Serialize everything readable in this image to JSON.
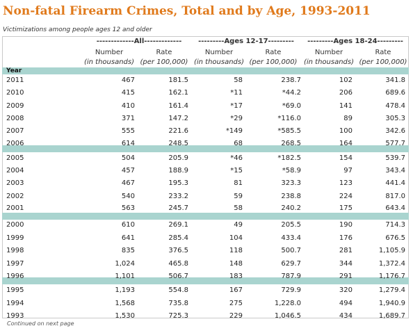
{
  "title": "Non-fatal Firearm Crimes, Total and by Age, 1993-2011",
  "subtitle": "Victimizations among people ages 12 and older",
  "groups": [
    {
      "label": "-------------All-------------"
    },
    {
      "label": "---------Ages 12-17---------"
    },
    {
      "label": "---------Ages 18-24---------"
    }
  ],
  "columns": [
    {
      "line1": "Number",
      "line2": "(in thousands)"
    },
    {
      "line1": "Rate",
      "line2": "(per 100,000)"
    },
    {
      "line1": "Number",
      "line2": "(in thousands)"
    },
    {
      "line1": "Rate",
      "line2": "(per 100,000)"
    },
    {
      "line1": "Number",
      "line2": "(in thousands)"
    },
    {
      "line1": "Rate",
      "line2": "(per 100,000)"
    }
  ],
  "year_label": "Year",
  "rows": [
    {
      "year": "2011",
      "v": [
        "467",
        "181.5",
        "58",
        "238.7",
        "102",
        "341.8"
      ]
    },
    {
      "year": "2010",
      "v": [
        "415",
        "162.1",
        "*11",
        "*44.2",
        "206",
        "689.6"
      ]
    },
    {
      "year": "2009",
      "v": [
        "410",
        "161.4",
        "*17",
        "*69.0",
        "141",
        "478.4"
      ]
    },
    {
      "year": "2008",
      "v": [
        "371",
        "147.2",
        "*29",
        "*116.0",
        "89",
        "305.3"
      ]
    },
    {
      "year": "2007",
      "v": [
        "555",
        "221.6",
        "*149",
        "*585.5",
        "100",
        "342.6"
      ]
    },
    {
      "year": "2006",
      "v": [
        "614",
        "248.5",
        "68",
        "268.5",
        "164",
        "577.7"
      ]
    },
    {
      "year": "2005",
      "v": [
        "504",
        "205.9",
        "*46",
        "*182.5",
        "154",
        "539.7"
      ]
    },
    {
      "year": "2004",
      "v": [
        "457",
        "188.9",
        "*15",
        "*58.9",
        "97",
        "343.4"
      ]
    },
    {
      "year": "2003",
      "v": [
        "467",
        "195.3",
        "81",
        "323.3",
        "123",
        "441.4"
      ]
    },
    {
      "year": "2002",
      "v": [
        "540",
        "233.2",
        "59",
        "238.8",
        "224",
        "817.0"
      ]
    },
    {
      "year": "2001",
      "v": [
        "563",
        "245.7",
        "58",
        "240.2",
        "175",
        "643.4"
      ]
    },
    {
      "year": "2000",
      "v": [
        "610",
        "269.1",
        "49",
        "205.5",
        "190",
        "714.3"
      ]
    },
    {
      "year": "1999",
      "v": [
        "641",
        "285.4",
        "104",
        "433.4",
        "176",
        "676.5"
      ]
    },
    {
      "year": "1998",
      "v": [
        "835",
        "376.5",
        "118",
        "500.7",
        "281",
        "1,105.9"
      ]
    },
    {
      "year": "1997",
      "v": [
        "1,024",
        "465.8",
        "148",
        "629.7",
        "344",
        "1,372.4"
      ]
    },
    {
      "year": "1996",
      "v": [
        "1,101",
        "506.7",
        "183",
        "787.9",
        "291",
        "1,176.7"
      ]
    },
    {
      "year": "1995",
      "v": [
        "1,193",
        "554.8",
        "167",
        "729.9",
        "320",
        "1,279.4"
      ]
    },
    {
      "year": "1994",
      "v": [
        "1,568",
        "735.8",
        "275",
        "1,228.0",
        "494",
        "1,940.9"
      ]
    },
    {
      "year": "1993",
      "v": [
        "1,530",
        "725.3",
        "229",
        "1,046.5",
        "434",
        "1,689.7"
      ]
    }
  ],
  "footnote": "Continued on next page"
}
